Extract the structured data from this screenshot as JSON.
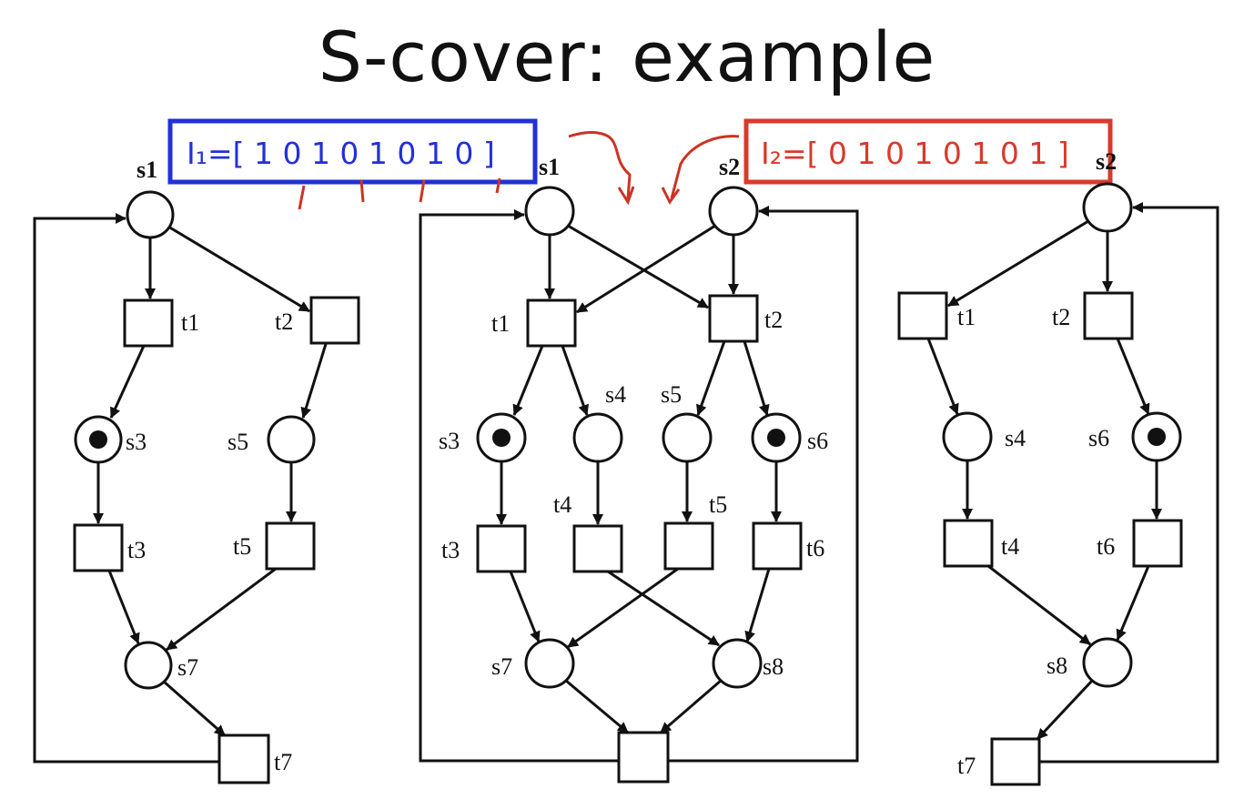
{
  "title": "S-cover: example",
  "invariants": {
    "i1_text": "I₁=[ 1 0 1 0 1 0 1 0 ]",
    "i2_text": "I₂=[ 0 1 0 1 0 1 0 1 ]",
    "i1_color": "#2230d8",
    "i2_color": "#d83a2a"
  },
  "left_net": {
    "places": [
      "s1",
      "s3",
      "s5",
      "s7"
    ],
    "transitions": [
      "t1",
      "t2",
      "t3",
      "t5",
      "t7"
    ],
    "marked": [
      "s3"
    ]
  },
  "middle_net": {
    "places": [
      "s1",
      "s2",
      "s3",
      "s4",
      "s5",
      "s6",
      "s7",
      "s8"
    ],
    "transitions": [
      "t1",
      "t2",
      "t3",
      "t4",
      "t5",
      "t6"
    ],
    "marked": [
      "s3",
      "s6"
    ]
  },
  "right_net": {
    "places": [
      "s2",
      "s4",
      "s6",
      "s8"
    ],
    "transitions": [
      "t1",
      "t2",
      "t4",
      "t6",
      "t7"
    ],
    "marked": [
      "s6"
    ]
  }
}
